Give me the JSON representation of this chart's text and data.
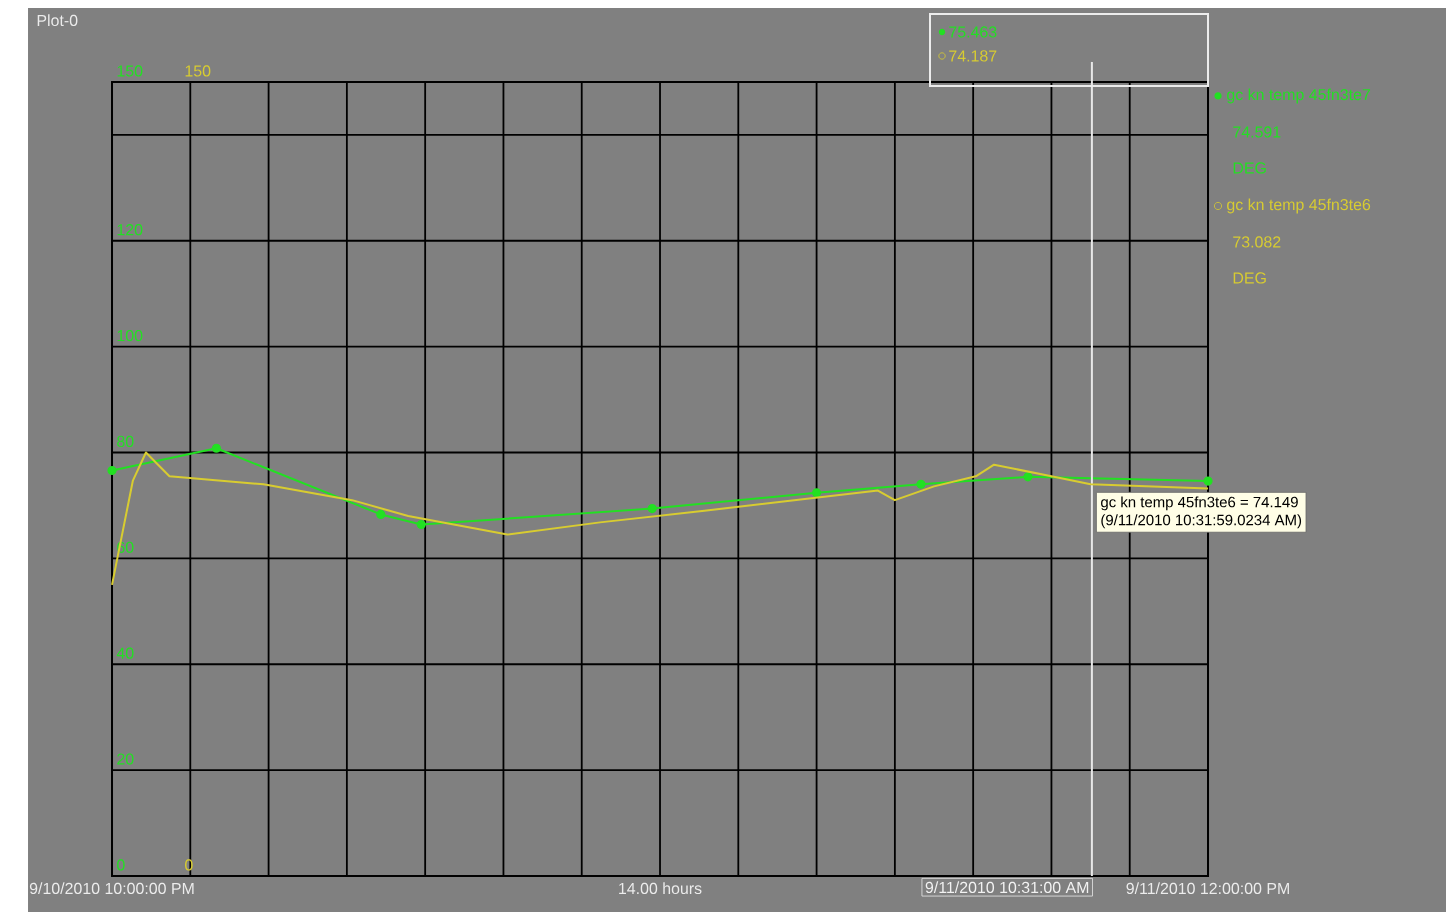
{
  "chart_data": {
    "type": "line",
    "title": "Plot-0",
    "xlabel": "14.00 hours",
    "xlim": [
      "2010-09-10T22:00",
      "2010-09-11T12:00"
    ],
    "xticks": [
      {
        "value": "2010-09-10T22:00",
        "label": "9/10/2010 10:00:00 PM"
      },
      {
        "value": "2010-09-10T23:00",
        "label": null
      },
      {
        "value": "2010-09-11T00:00",
        "label": null
      },
      {
        "value": "2010-09-11T01:00",
        "label": null
      },
      {
        "value": "2010-09-11T02:00",
        "label": null
      },
      {
        "value": "2010-09-11T03:00",
        "label": null
      },
      {
        "value": "2010-09-11T04:00",
        "label": null
      },
      {
        "value": "2010-09-11T05:00",
        "label": null
      },
      {
        "value": "2010-09-11T06:00",
        "label": null
      },
      {
        "value": "2010-09-11T07:00",
        "label": null
      },
      {
        "value": "2010-09-11T08:00",
        "label": null
      },
      {
        "value": "2010-09-11T09:00",
        "label": null
      },
      {
        "value": "2010-09-11T10:00",
        "label": null
      },
      {
        "value": "2010-09-11T11:00",
        "label": null
      },
      {
        "value": "2010-09-11T12:00",
        "label": "9/11/2010 12:00:00 PM"
      }
    ],
    "ylim": [
      0,
      150
    ],
    "yticks": [
      0,
      20,
      40,
      60,
      80,
      100,
      120,
      {
        "value": 140,
        "label": null
      },
      150
    ],
    "y2lim": [
      0,
      150
    ],
    "y2ticks": [
      0,
      150
    ],
    "series": [
      {
        "name": "gc kn temp 45fn3te7",
        "color": "#22e022",
        "marker": "circle",
        "x": [
          "2010-09-10T22:00",
          "2010-09-10T23:20",
          "2010-09-11T01:26",
          "2010-09-11T01:57",
          "2010-09-11T04:54",
          "2010-09-11T07:00",
          "2010-09-11T08:20",
          "2010-09-11T09:42",
          "2010-09-11T12:00"
        ],
        "values": [
          76.6,
          80.8,
          68.3,
          66.4,
          69.4,
          72.4,
          74.0,
          75.4,
          74.6
        ]
      },
      {
        "name": "gc kn temp 45fn3te6",
        "color": "#d8cc30",
        "axis": "y2",
        "x": [
          "2010-09-10T22:00",
          "2010-09-10T22:16",
          "2010-09-10T22:26",
          "2010-09-10T22:44",
          "2010-09-10T23:56",
          "2010-09-11T01:04",
          "2010-09-11T01:47",
          "2010-09-11T03:03",
          "2010-09-11T04:14",
          "2010-09-11T05:34",
          "2010-09-11T07:47",
          "2010-09-11T08:00",
          "2010-09-11T08:30",
          "2010-09-11T09:02",
          "2010-09-11T09:16",
          "2010-09-11T10:00",
          "2010-09-11T10:30",
          "2010-09-11T12:00"
        ],
        "values": [
          55.0,
          74.7,
          80.0,
          75.5,
          74.0,
          71.0,
          68.0,
          64.5,
          66.8,
          69.0,
          72.8,
          71.0,
          73.6,
          75.5,
          77.7,
          75.5,
          74.0,
          73.2
        ]
      }
    ],
    "ref_lines": [
      {
        "axis": "x",
        "value": "2010-09-11T10:31",
        "label": "9/11/2010 10:31:00 AM",
        "color": "#e8e8e8"
      }
    ],
    "annotations": [
      "75.463",
      "74.187",
      "74.591",
      "DEG",
      "73.082",
      "DEG",
      "gc kn temp 45fn3te6 = 74.149",
      "(9/11/2010 10:31:59.0234 AM)"
    ],
    "grid": true,
    "legend": "right"
  }
}
